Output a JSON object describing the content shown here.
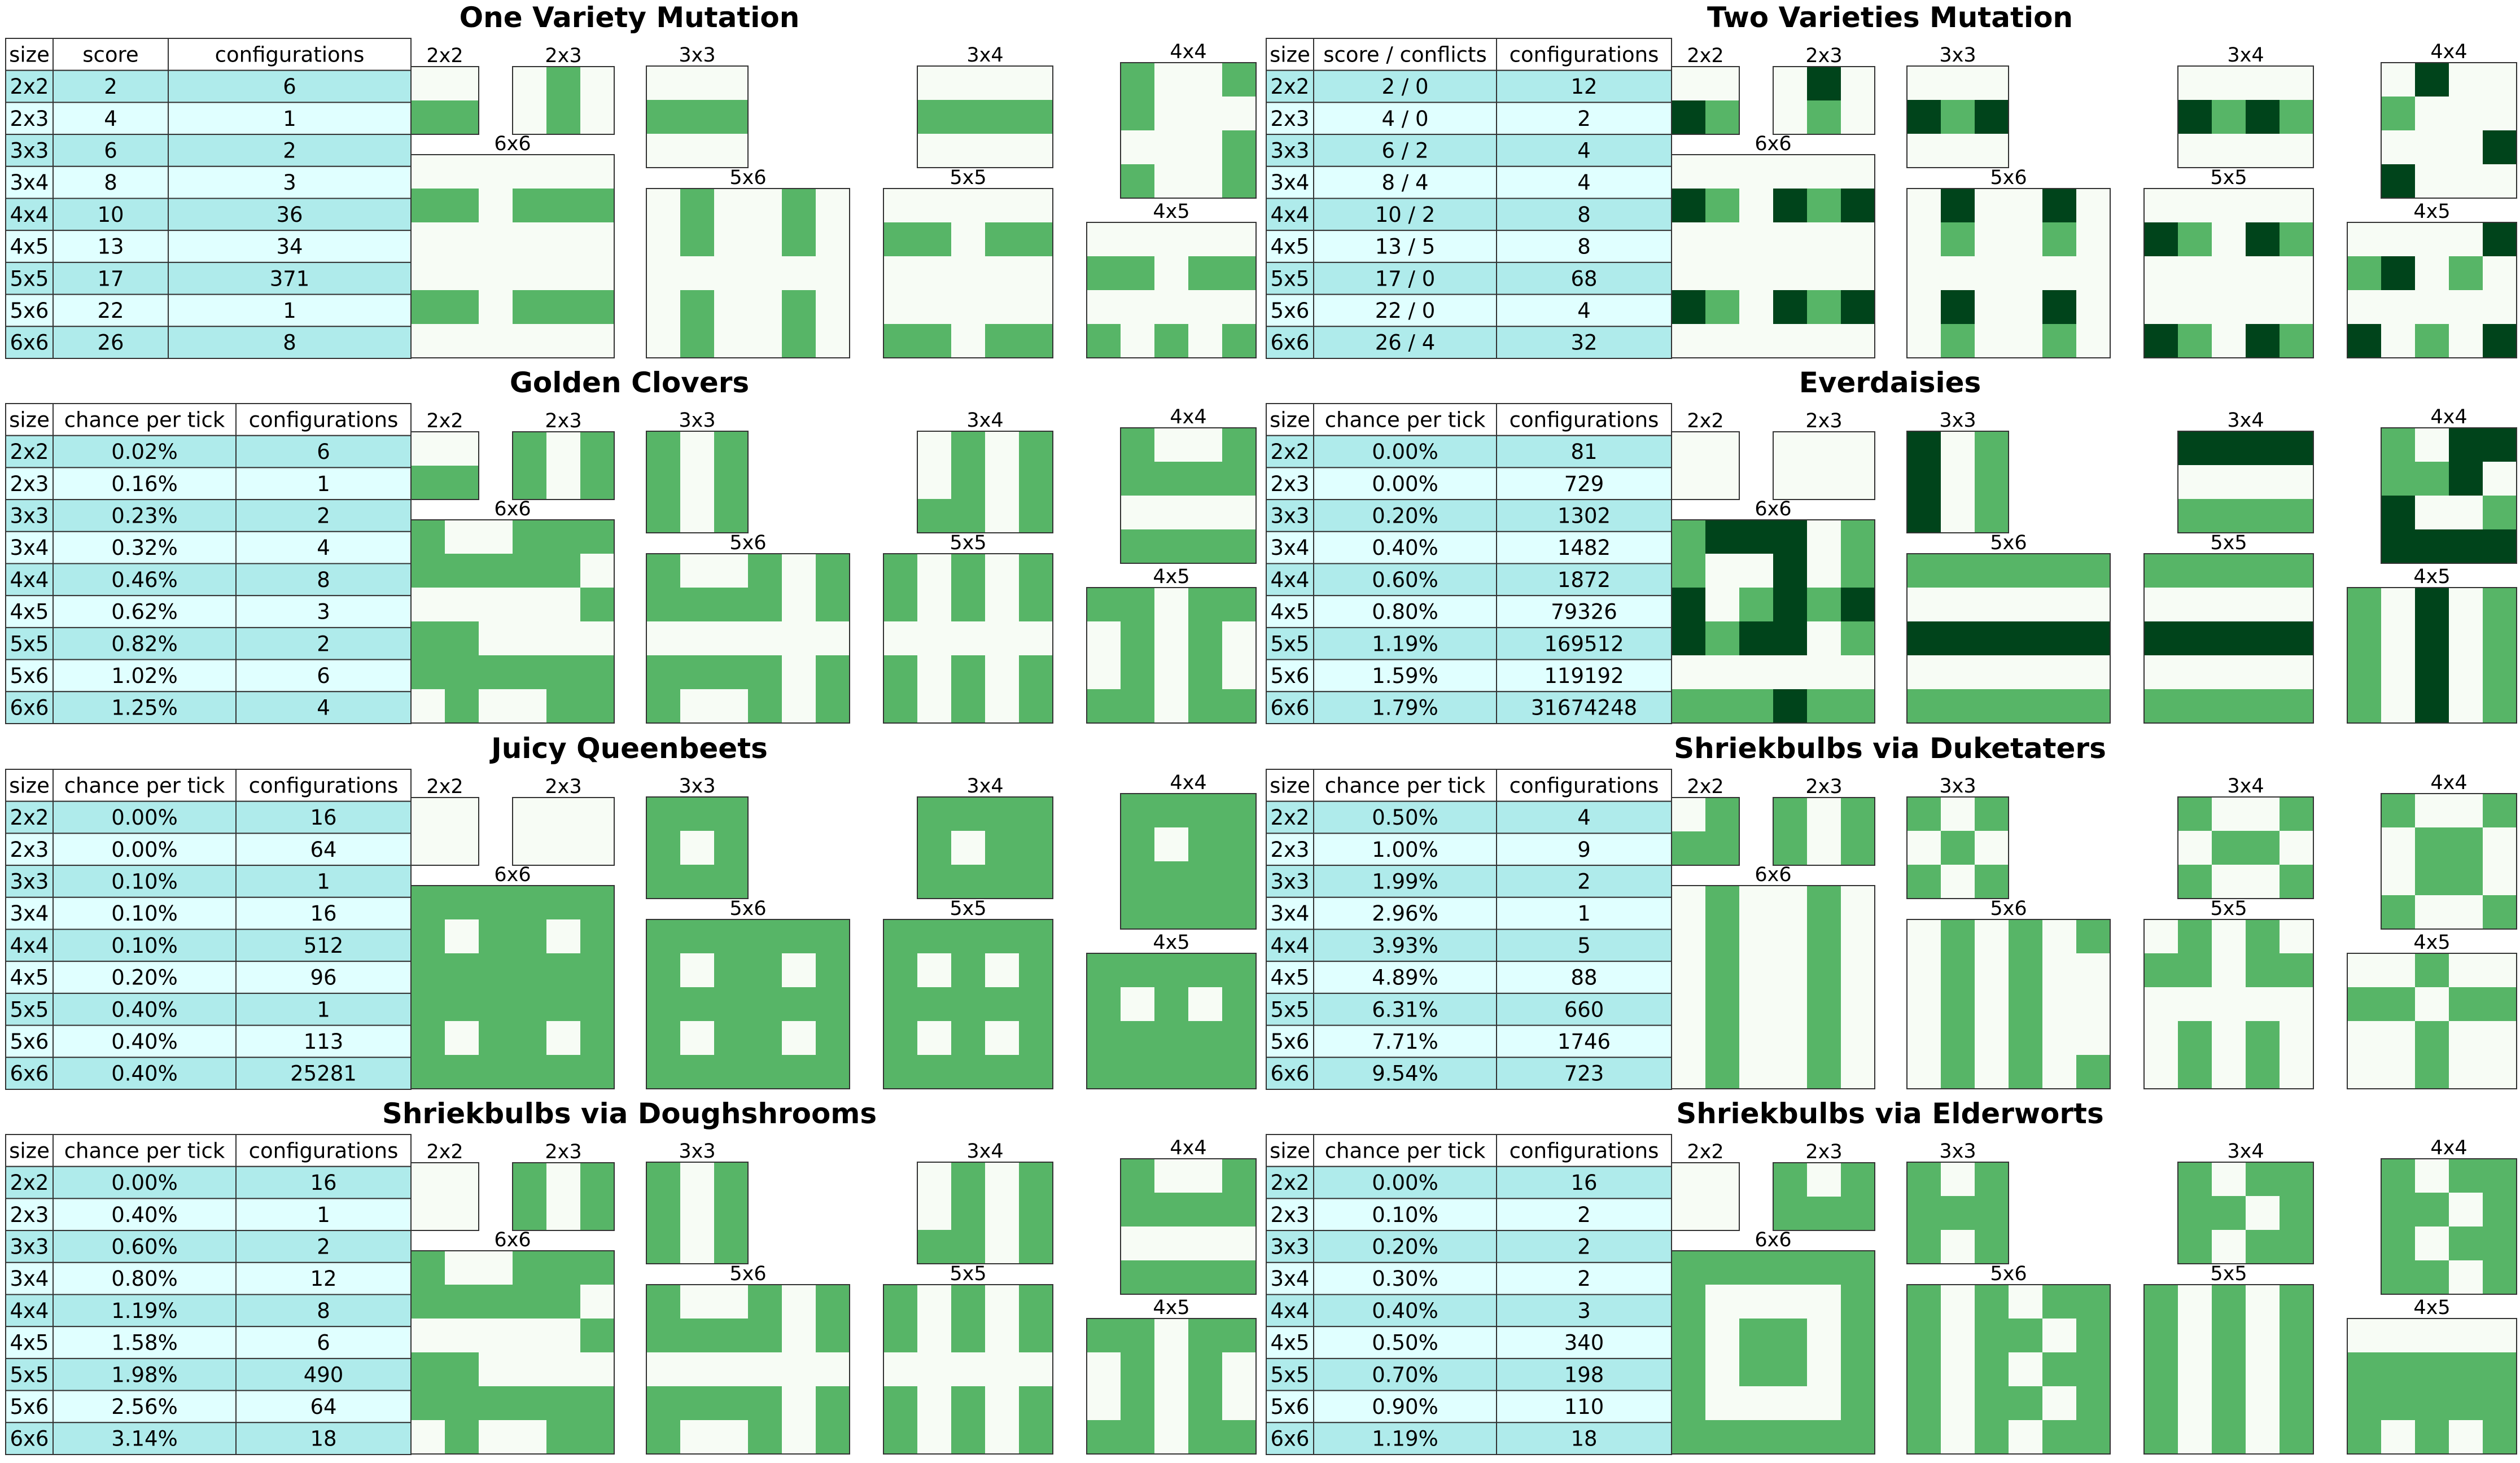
{
  "palette": {
    "header": "#ffffff",
    "row_dark": "#afebeb",
    "row_light": "#e0ffff",
    "grid_off": "#f7fcf5",
    "grid_on": "#57b567",
    "grid_on2": "#00441b",
    "border": "#333333"
  },
  "chart_data": [
    {
      "type": "table",
      "title": "One Variety Mutation",
      "columns": [
        "size",
        "score",
        "configurations"
      ],
      "rows": [
        [
          "2x2",
          "2",
          "6"
        ],
        [
          "2x3",
          "4",
          "1"
        ],
        [
          "3x3",
          "6",
          "2"
        ],
        [
          "3x4",
          "8",
          "3"
        ],
        [
          "4x4",
          "10",
          "36"
        ],
        [
          "4x5",
          "13",
          "34"
        ],
        [
          "5x5",
          "17",
          "371"
        ],
        [
          "5x6",
          "22",
          "1"
        ],
        [
          "6x6",
          "26",
          "8"
        ]
      ],
      "layouts": [
        {
          "label": "2x2",
          "cells": [
            "00",
            "11"
          ]
        },
        {
          "label": "2x3",
          "cells": [
            "010",
            "010"
          ]
        },
        {
          "label": "3x3",
          "cells": [
            "000",
            "111",
            "000"
          ]
        },
        {
          "label": "3x4",
          "cells": [
            "0000",
            "1111",
            "0000"
          ]
        },
        {
          "label": "4x4",
          "cells": [
            "1001",
            "1000",
            "0001",
            "1001"
          ]
        },
        {
          "label": "6x6",
          "cells": [
            "000000",
            "110111",
            "000000",
            "000000",
            "110111",
            "000000"
          ]
        },
        {
          "label": "5x6",
          "cells": [
            "010010",
            "010010",
            "000000",
            "010010",
            "010010"
          ]
        },
        {
          "label": "5x5",
          "cells": [
            "00000",
            "11011",
            "00000",
            "00000",
            "11011"
          ]
        },
        {
          "label": "4x5",
          "cells": [
            "00000",
            "11011",
            "00000",
            "10101"
          ]
        }
      ]
    },
    {
      "type": "table",
      "title": "Two Varieties Mutation",
      "columns": [
        "size",
        "score / conflicts",
        "configurations"
      ],
      "rows": [
        [
          "2x2",
          "2 /  0",
          "12"
        ],
        [
          "2x3",
          "4 /  0",
          "2"
        ],
        [
          "3x3",
          "6 /  2",
          "4"
        ],
        [
          "3x4",
          "8 /  4",
          "4"
        ],
        [
          "4x4",
          "10 /  2",
          "8"
        ],
        [
          "4x5",
          "13 /  5",
          "8"
        ],
        [
          "5x5",
          "17 /  0",
          "68"
        ],
        [
          "5x6",
          "22 /  0",
          "4"
        ],
        [
          "6x6",
          "26 /  4",
          "32"
        ]
      ],
      "layouts": [
        {
          "label": "2x2",
          "cells": [
            "00",
            "21"
          ]
        },
        {
          "label": "2x3",
          "cells": [
            "020",
            "010"
          ]
        },
        {
          "label": "3x3",
          "cells": [
            "000",
            "212",
            "000"
          ]
        },
        {
          "label": "3x4",
          "cells": [
            "0000",
            "2121",
            "0000"
          ]
        },
        {
          "label": "4x4",
          "cells": [
            "0200",
            "1000",
            "0002",
            "2000"
          ]
        },
        {
          "label": "6x6",
          "cells": [
            "000000",
            "210212",
            "000000",
            "000000",
            "210212",
            "000000"
          ]
        },
        {
          "label": "5x6",
          "cells": [
            "020020",
            "010010",
            "000000",
            "020020",
            "010010"
          ]
        },
        {
          "label": "5x5",
          "cells": [
            "00000",
            "21021",
            "00000",
            "00000",
            "21021"
          ]
        },
        {
          "label": "4x5",
          "cells": [
            "00002",
            "12010",
            "00000",
            "20102"
          ]
        }
      ]
    },
    {
      "type": "table",
      "title": "Golden Clovers",
      "columns": [
        "size",
        "chance per tick",
        "configurations"
      ],
      "rows": [
        [
          "2x2",
          "0.02%",
          "6"
        ],
        [
          "2x3",
          "0.16%",
          "1"
        ],
        [
          "3x3",
          "0.23%",
          "2"
        ],
        [
          "3x4",
          "0.32%",
          "4"
        ],
        [
          "4x4",
          "0.46%",
          "8"
        ],
        [
          "4x5",
          "0.62%",
          "3"
        ],
        [
          "5x5",
          "0.82%",
          "2"
        ],
        [
          "5x6",
          "1.02%",
          "6"
        ],
        [
          "6x6",
          "1.25%",
          "4"
        ]
      ],
      "layouts": [
        {
          "label": "2x2",
          "cells": [
            "00",
            "11"
          ]
        },
        {
          "label": "2x3",
          "cells": [
            "101",
            "101"
          ]
        },
        {
          "label": "3x3",
          "cells": [
            "101",
            "101",
            "101"
          ]
        },
        {
          "label": "3x4",
          "cells": [
            "0101",
            "0101",
            "1101"
          ]
        },
        {
          "label": "4x4",
          "cells": [
            "1001",
            "1111",
            "0000",
            "1111"
          ]
        },
        {
          "label": "6x6",
          "cells": [
            "100111",
            "111110",
            "000001",
            "110000",
            "111111",
            "010011"
          ]
        },
        {
          "label": "5x6",
          "cells": [
            "100101",
            "111101",
            "000000",
            "111101",
            "100101"
          ]
        },
        {
          "label": "5x5",
          "cells": [
            "10101",
            "10101",
            "00000",
            "10101",
            "10101"
          ]
        },
        {
          "label": "4x5",
          "cells": [
            "11011",
            "01010",
            "01010",
            "11011"
          ]
        }
      ]
    },
    {
      "type": "table",
      "title": "Everdaisies",
      "columns": [
        "size",
        "chance per tick",
        "configurations"
      ],
      "rows": [
        [
          "2x2",
          "0.00%",
          "81"
        ],
        [
          "2x3",
          "0.00%",
          "729"
        ],
        [
          "3x3",
          "0.20%",
          "1302"
        ],
        [
          "3x4",
          "0.40%",
          "1482"
        ],
        [
          "4x4",
          "0.60%",
          "1872"
        ],
        [
          "4x5",
          "0.80%",
          "79326"
        ],
        [
          "5x5",
          "1.19%",
          "169512"
        ],
        [
          "5x6",
          "1.59%",
          "119192"
        ],
        [
          "6x6",
          "1.79%",
          "31674248"
        ]
      ],
      "layouts": [
        {
          "label": "2x2",
          "cells": [
            "00",
            "00"
          ]
        },
        {
          "label": "2x3",
          "cells": [
            "000",
            "000"
          ]
        },
        {
          "label": "3x3",
          "cells": [
            "201",
            "201",
            "201"
          ]
        },
        {
          "label": "3x4",
          "cells": [
            "2222",
            "0000",
            "1111"
          ]
        },
        {
          "label": "4x4",
          "cells": [
            "1022",
            "1120",
            "2001",
            "2222"
          ]
        },
        {
          "label": "6x6",
          "cells": [
            "122201",
            "100201",
            "201212",
            "212201",
            "000000",
            "111211"
          ]
        },
        {
          "label": "5x6",
          "cells": [
            "111111",
            "000000",
            "222222",
            "000000",
            "111111"
          ]
        },
        {
          "label": "5x5",
          "cells": [
            "11111",
            "00000",
            "22222",
            "00000",
            "11111"
          ]
        },
        {
          "label": "4x5",
          "cells": [
            "10201",
            "10201",
            "10201",
            "10201"
          ]
        }
      ]
    },
    {
      "type": "table",
      "title": "Juicy Queenbeets",
      "columns": [
        "size",
        "chance per tick",
        "configurations"
      ],
      "rows": [
        [
          "2x2",
          "0.00%",
          "16"
        ],
        [
          "2x3",
          "0.00%",
          "64"
        ],
        [
          "3x3",
          "0.10%",
          "1"
        ],
        [
          "3x4",
          "0.10%",
          "16"
        ],
        [
          "4x4",
          "0.10%",
          "512"
        ],
        [
          "4x5",
          "0.20%",
          "96"
        ],
        [
          "5x5",
          "0.40%",
          "1"
        ],
        [
          "5x6",
          "0.40%",
          "113"
        ],
        [
          "6x6",
          "0.40%",
          "25281"
        ]
      ],
      "layouts": [
        {
          "label": "2x2",
          "cells": [
            "00",
            "00"
          ]
        },
        {
          "label": "2x3",
          "cells": [
            "000",
            "000"
          ]
        },
        {
          "label": "3x3",
          "cells": [
            "111",
            "101",
            "111"
          ]
        },
        {
          "label": "3x4",
          "cells": [
            "1111",
            "1011",
            "1111"
          ]
        },
        {
          "label": "4x4",
          "cells": [
            "1111",
            "1011",
            "1111",
            "1111"
          ]
        },
        {
          "label": "6x6",
          "cells": [
            "111111",
            "101101",
            "111111",
            "111111",
            "101101",
            "111111"
          ]
        },
        {
          "label": "5x6",
          "cells": [
            "111111",
            "101101",
            "111111",
            "101101",
            "111111"
          ]
        },
        {
          "label": "5x5",
          "cells": [
            "11111",
            "10101",
            "11111",
            "10101",
            "11111"
          ]
        },
        {
          "label": "4x5",
          "cells": [
            "11111",
            "10101",
            "11111",
            "11111"
          ]
        }
      ]
    },
    {
      "type": "table",
      "title": "Shriekbulbs via Duketaters",
      "columns": [
        "size",
        "chance per tick",
        "configurations"
      ],
      "rows": [
        [
          "2x2",
          "0.50%",
          "4"
        ],
        [
          "2x3",
          "1.00%",
          "9"
        ],
        [
          "3x3",
          "1.99%",
          "2"
        ],
        [
          "3x4",
          "2.96%",
          "1"
        ],
        [
          "4x4",
          "3.93%",
          "5"
        ],
        [
          "4x5",
          "4.89%",
          "88"
        ],
        [
          "5x5",
          "6.31%",
          "660"
        ],
        [
          "5x6",
          "7.71%",
          "1746"
        ],
        [
          "6x6",
          "9.54%",
          "723"
        ]
      ],
      "layouts": [
        {
          "label": "2x2",
          "cells": [
            "01",
            "11"
          ]
        },
        {
          "label": "2x3",
          "cells": [
            "101",
            "101"
          ]
        },
        {
          "label": "3x3",
          "cells": [
            "101",
            "010",
            "101"
          ]
        },
        {
          "label": "3x4",
          "cells": [
            "1001",
            "0110",
            "1001"
          ]
        },
        {
          "label": "4x4",
          "cells": [
            "1001",
            "0110",
            "0110",
            "1001"
          ]
        },
        {
          "label": "6x6",
          "cells": [
            "010010",
            "010010",
            "010010",
            "010010",
            "010010",
            "010010"
          ]
        },
        {
          "label": "5x6",
          "cells": [
            "010101",
            "010100",
            "010100",
            "010100",
            "010101"
          ]
        },
        {
          "label": "5x5",
          "cells": [
            "01010",
            "11011",
            "00000",
            "01010",
            "01010"
          ]
        },
        {
          "label": "4x5",
          "cells": [
            "00100",
            "11011",
            "00100",
            "00100"
          ]
        }
      ]
    },
    {
      "type": "table",
      "title": "Shriekbulbs via Doughshrooms",
      "columns": [
        "size",
        "chance per tick",
        "configurations"
      ],
      "rows": [
        [
          "2x2",
          "0.00%",
          "16"
        ],
        [
          "2x3",
          "0.40%",
          "1"
        ],
        [
          "3x3",
          "0.60%",
          "2"
        ],
        [
          "3x4",
          "0.80%",
          "12"
        ],
        [
          "4x4",
          "1.19%",
          "8"
        ],
        [
          "4x5",
          "1.58%",
          "6"
        ],
        [
          "5x5",
          "1.98%",
          "490"
        ],
        [
          "5x6",
          "2.56%",
          "64"
        ],
        [
          "6x6",
          "3.14%",
          "18"
        ]
      ],
      "layouts": [
        {
          "label": "2x2",
          "cells": [
            "00",
            "00"
          ]
        },
        {
          "label": "2x3",
          "cells": [
            "101",
            "101"
          ]
        },
        {
          "label": "3x3",
          "cells": [
            "101",
            "101",
            "101"
          ]
        },
        {
          "label": "3x4",
          "cells": [
            "0101",
            "0101",
            "1101"
          ]
        },
        {
          "label": "4x4",
          "cells": [
            "1001",
            "1111",
            "0000",
            "1111"
          ]
        },
        {
          "label": "6x6",
          "cells": [
            "100111",
            "111110",
            "000001",
            "110000",
            "111111",
            "010011"
          ]
        },
        {
          "label": "5x6",
          "cells": [
            "100101",
            "111101",
            "000000",
            "111101",
            "100101"
          ]
        },
        {
          "label": "5x5",
          "cells": [
            "10101",
            "10101",
            "00000",
            "10101",
            "10101"
          ]
        },
        {
          "label": "4x5",
          "cells": [
            "11011",
            "01010",
            "01010",
            "11011"
          ]
        }
      ]
    },
    {
      "type": "table",
      "title": "Shriekbulbs via Elderworts",
      "columns": [
        "size",
        "chance per tick",
        "configurations"
      ],
      "rows": [
        [
          "2x2",
          "0.00%",
          "16"
        ],
        [
          "2x3",
          "0.10%",
          "2"
        ],
        [
          "3x3",
          "0.20%",
          "2"
        ],
        [
          "3x4",
          "0.30%",
          "2"
        ],
        [
          "4x4",
          "0.40%",
          "3"
        ],
        [
          "4x5",
          "0.50%",
          "340"
        ],
        [
          "5x5",
          "0.70%",
          "198"
        ],
        [
          "5x6",
          "0.90%",
          "110"
        ],
        [
          "6x6",
          "1.19%",
          "18"
        ]
      ],
      "layouts": [
        {
          "label": "2x2",
          "cells": [
            "00",
            "00"
          ]
        },
        {
          "label": "2x3",
          "cells": [
            "101",
            "111"
          ]
        },
        {
          "label": "3x3",
          "cells": [
            "101",
            "111",
            "101"
          ]
        },
        {
          "label": "3x4",
          "cells": [
            "1011",
            "1101",
            "1011"
          ]
        },
        {
          "label": "4x4",
          "cells": [
            "1011",
            "1101",
            "1011",
            "1101"
          ]
        },
        {
          "label": "6x6",
          "cells": [
            "111111",
            "100001",
            "101101",
            "101101",
            "100001",
            "111111"
          ]
        },
        {
          "label": "5x6",
          "cells": [
            "101011",
            "101101",
            "101011",
            "101101",
            "101011"
          ]
        },
        {
          "label": "5x5",
          "cells": [
            "10101",
            "10101",
            "10101",
            "10101",
            "10101"
          ]
        },
        {
          "label": "4x5",
          "cells": [
            "00000",
            "11111",
            "11111",
            "10101"
          ]
        }
      ]
    }
  ]
}
